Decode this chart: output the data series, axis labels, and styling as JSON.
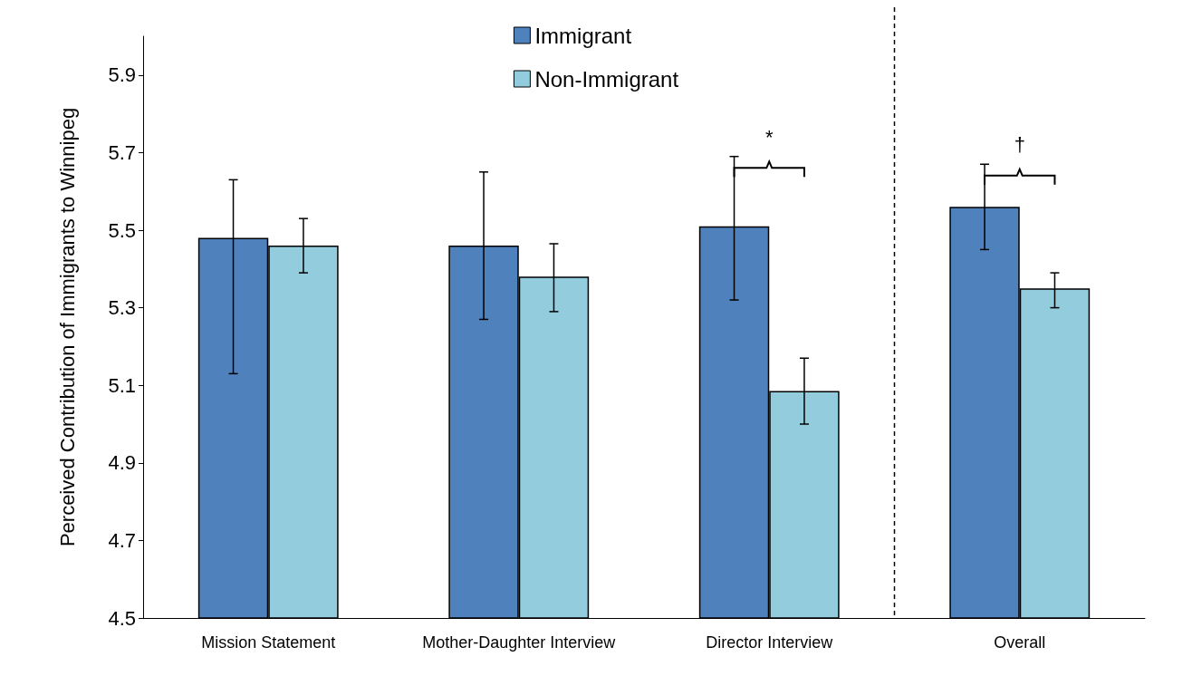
{
  "chart_data": {
    "type": "bar",
    "ylabel": "Perceived Contribution of Immigrants to Winnipeg",
    "categories": [
      "Mission Statement",
      "Mother-Daughter Interview",
      "Director Interview",
      "Overall"
    ],
    "series": [
      {
        "name": "Immigrant",
        "color": "#4f81bd",
        "values": [
          5.48,
          5.46,
          5.51,
          5.56
        ],
        "errors": [
          [
            5.13,
            5.63
          ],
          [
            5.27,
            5.65
          ],
          [
            5.32,
            5.69
          ],
          [
            5.45,
            5.67
          ]
        ]
      },
      {
        "name": "Non-Immigrant",
        "color": "#93cddd",
        "values": [
          5.46,
          5.38,
          5.085,
          5.35
        ],
        "errors": [
          [
            5.39,
            5.53
          ],
          [
            5.29,
            5.465
          ],
          [
            5.0,
            5.17
          ],
          [
            5.3,
            5.39
          ]
        ]
      }
    ],
    "ylim": [
      4.5,
      6.0
    ],
    "yticks": [
      4.5,
      4.7,
      4.9,
      5.1,
      5.3,
      5.5,
      5.7,
      5.9
    ],
    "grid": false,
    "legend": "top",
    "annotations": [
      "*",
      "†"
    ]
  }
}
